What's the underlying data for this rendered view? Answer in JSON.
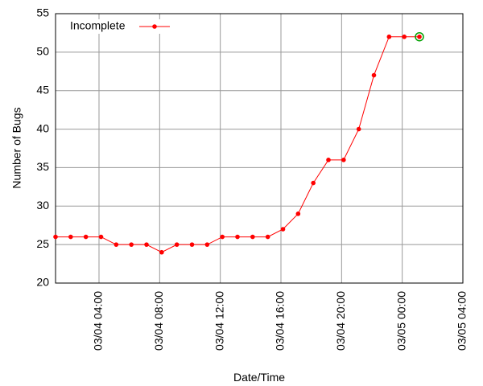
{
  "chart_data": {
    "type": "line",
    "x_label": "Date/Time",
    "y_label": "Number of Bugs",
    "x": [
      "03/04 01:08",
      "03/04 02:08",
      "03/04 03:08",
      "03/04 04:08",
      "03/04 05:08",
      "03/04 06:08",
      "03/04 07:08",
      "03/04 08:08",
      "03/04 09:08",
      "03/04 10:08",
      "03/04 11:08",
      "03/04 12:08",
      "03/04 13:08",
      "03/04 14:08",
      "03/04 15:08",
      "03/04 16:08",
      "03/04 17:08",
      "03/04 18:08",
      "03/04 19:08",
      "03/04 20:08",
      "03/04 21:08",
      "03/04 22:08",
      "03/04 23:08",
      "03/05 00:08",
      "03/05 01:08"
    ],
    "series": [
      {
        "name": "Incomplete",
        "color": "#ff0000",
        "values": [
          26,
          26,
          26,
          26,
          25,
          25,
          25,
          24,
          25,
          25,
          25,
          26,
          26,
          26,
          26,
          27,
          29,
          33,
          36,
          36,
          40,
          47,
          52,
          52,
          52
        ]
      }
    ],
    "highlight_last_color": "#00a000",
    "xlim": [
      "03/04 01:08",
      "03/05 04:00"
    ],
    "xticks": [
      "03/04 04:00",
      "03/04 08:00",
      "03/04 12:00",
      "03/04 16:00",
      "03/04 20:00",
      "03/05 00:00",
      "03/05 04:00"
    ],
    "ylim": [
      20,
      55
    ],
    "yticks": [
      20,
      25,
      30,
      35,
      40,
      45,
      50,
      55
    ],
    "grid": true,
    "legend": "top-left"
  }
}
